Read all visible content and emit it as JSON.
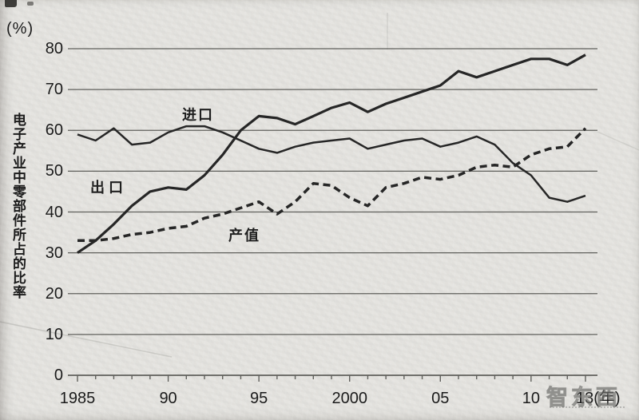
{
  "page": {
    "watermark": "智东西",
    "colors": {
      "paper": "#e5e4e0",
      "ink": "#262626",
      "grid": "#60605c",
      "text": "#1b1b1b",
      "watermark": "#7d7d7a"
    }
  },
  "chart_data": {
    "type": "line",
    "title": "",
    "y_axis": {
      "unit_label": "(%)",
      "title": "电子产业中零部件所占的比率",
      "ticks": [
        80,
        70,
        60,
        50,
        40,
        30,
        20,
        10,
        0
      ],
      "range": [
        0,
        80
      ],
      "grid": true
    },
    "x_axis": {
      "unit_suffix": "(年)",
      "range": [
        1985,
        2013
      ],
      "tick_labels": [
        {
          "year": 1985,
          "label": "1985"
        },
        {
          "year": 1990,
          "label": "90"
        },
        {
          "year": 1995,
          "label": "95"
        },
        {
          "year": 2000,
          "label": "2000"
        },
        {
          "year": 2005,
          "label": "05"
        },
        {
          "year": 2010,
          "label": "10"
        },
        {
          "year": 2013,
          "label": "13(年)"
        }
      ]
    },
    "x": [
      1985,
      1986,
      1987,
      1988,
      1989,
      1990,
      1991,
      1992,
      1993,
      1994,
      1995,
      1996,
      1997,
      1998,
      1999,
      2000,
      2001,
      2002,
      2003,
      2004,
      2005,
      2006,
      2007,
      2008,
      2009,
      2010,
      2011,
      2012,
      2013
    ],
    "series": [
      {
        "name": "出口",
        "key": "export",
        "style": "solid",
        "values": [
          30,
          33,
          37,
          41.5,
          45,
          46,
          45.5,
          49,
          54,
          60,
          63.5,
          63,
          61.5,
          63.5,
          65.5,
          66.8,
          64.5,
          66.5,
          68,
          69.5,
          71,
          74.5,
          73,
          74.5,
          76,
          77.5,
          77.5,
          76,
          78.5
        ]
      },
      {
        "name": "进口",
        "key": "import",
        "style": "solid",
        "values": [
          59,
          57.5,
          60.5,
          56.5,
          57,
          59.5,
          61,
          61,
          59.5,
          57.5,
          55.5,
          54.5,
          56,
          57,
          57.5,
          58,
          55.5,
          56.5,
          57.5,
          58,
          56,
          57,
          58.5,
          56.5,
          52,
          49,
          43.5,
          42.5,
          44
        ]
      },
      {
        "name": "产值",
        "key": "output-value",
        "style": "dashed",
        "values": [
          33,
          33,
          33.5,
          34.5,
          35,
          36,
          36.5,
          38.5,
          39.5,
          41,
          42.5,
          39.5,
          42.5,
          47,
          46.5,
          43.5,
          41.5,
          46,
          47,
          48.5,
          48,
          49,
          51,
          51.5,
          51,
          54,
          55.5,
          56,
          60.5
        ]
      }
    ],
    "legend_position": "inline-labels"
  }
}
